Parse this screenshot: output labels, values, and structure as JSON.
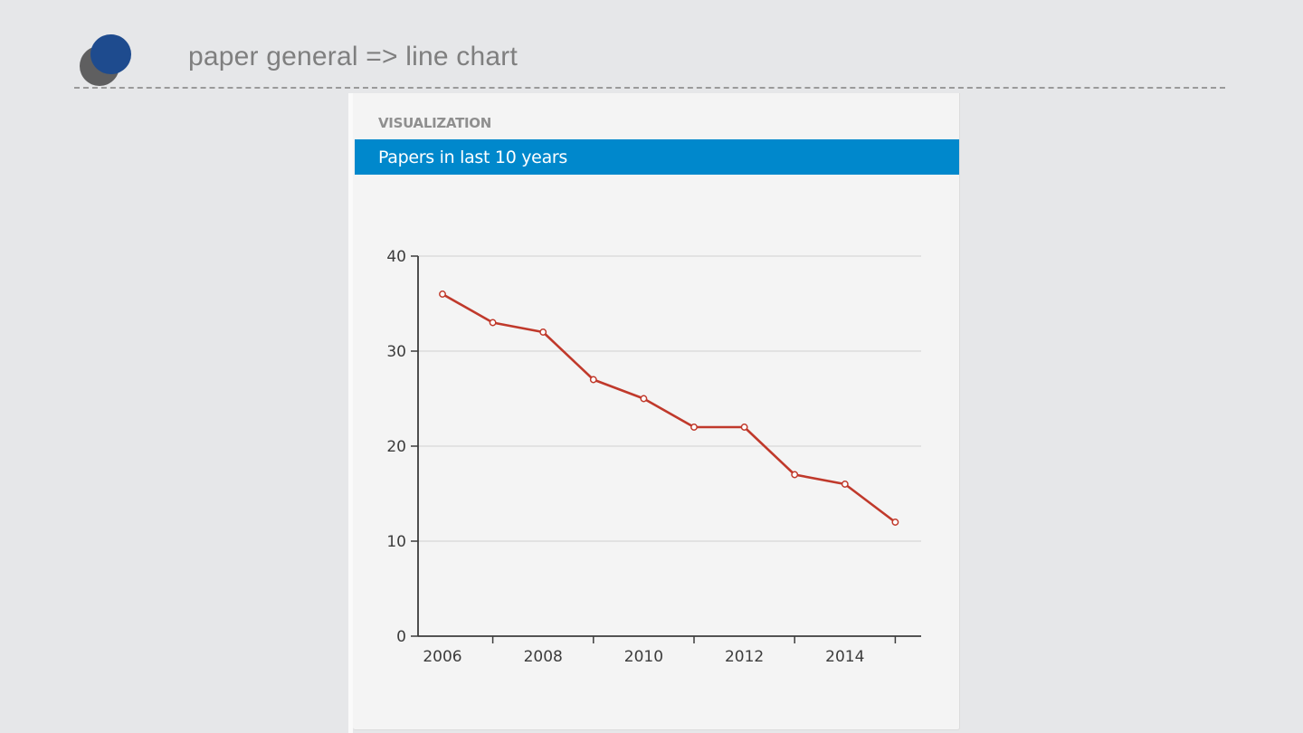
{
  "header": {
    "title": "paper general => line chart",
    "logo_icon": "overlapping-circles-logo"
  },
  "card": {
    "section_label": "VISUALIZATION",
    "title": "Papers in last 10 years",
    "header_color": "#0088cc"
  },
  "chart_data": {
    "type": "line",
    "title": "Papers in last 10 years",
    "xlabel": "",
    "ylabel": "",
    "x": [
      2006,
      2007,
      2008,
      2009,
      2010,
      2011,
      2012,
      2013,
      2014,
      2015
    ],
    "series": [
      {
        "name": "Papers",
        "values": [
          36,
          33,
          32,
          27,
          25,
          22,
          22,
          17,
          16,
          12
        ],
        "color": "#c0392b"
      }
    ],
    "x_tick_labels": [
      "2006",
      "2008",
      "2010",
      "2012",
      "2014"
    ],
    "x_tick_marks": [
      2007,
      2009,
      2011,
      2013,
      2015
    ],
    "y_ticks": [
      0,
      10,
      20,
      30,
      40
    ],
    "y_tick_labels": [
      "0",
      "10",
      "20",
      "30",
      "40"
    ],
    "ylim": [
      0,
      40
    ],
    "xlim": [
      2005.5,
      2015.5
    ],
    "grid": true,
    "legend": "none"
  }
}
